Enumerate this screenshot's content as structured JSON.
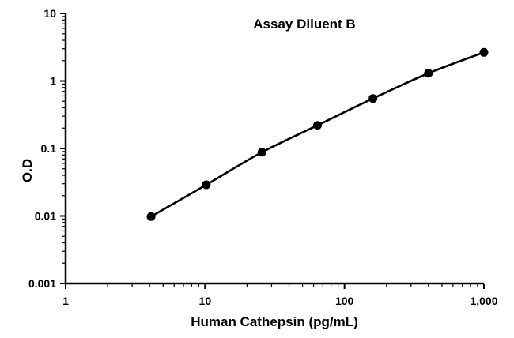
{
  "chart_data": {
    "type": "line",
    "title": "Assay Diluent B",
    "xlabel": "Human Cathepsin (pg/mL)",
    "ylabel": "O.D",
    "x_scale": "log",
    "y_scale": "log",
    "xlim": [
      1,
      1000
    ],
    "ylim": [
      0.001,
      10
    ],
    "x_ticks": [
      1,
      10,
      100,
      1000
    ],
    "x_tick_labels": [
      "1",
      "10",
      "100",
      "1,000"
    ],
    "y_ticks": [
      0.001,
      0.01,
      0.1,
      1,
      10
    ],
    "y_tick_labels": [
      "0.001",
      "0.01",
      "0.1",
      "1",
      "10"
    ],
    "grid": false,
    "legend": "none",
    "series": [
      {
        "color": "#000000",
        "marker": "circle",
        "x": [
          4.1,
          10.2,
          25.6,
          64,
          160,
          400,
          1000
        ],
        "y": [
          0.0098,
          0.029,
          0.088,
          0.22,
          0.55,
          1.3,
          2.65
        ]
      }
    ]
  }
}
